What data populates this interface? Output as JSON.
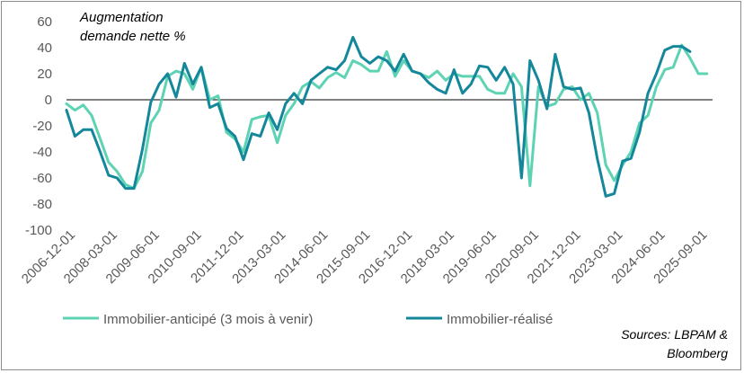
{
  "chart_data": {
    "type": "line",
    "title": "Augmentation demande nette %",
    "title_lines": [
      "Augmentation",
      "demande nette %"
    ],
    "source_lines": [
      "Sources: LBPAM &",
      "Bloomberg"
    ],
    "ylim": [
      -100,
      60
    ],
    "yticks": [
      60,
      40,
      20,
      0,
      -20,
      -40,
      -60,
      -80,
      -100
    ],
    "xlim": [
      "2006-10-01",
      "2025-12-01"
    ],
    "xtick_labels": [
      "2006-12-01",
      "2008-03-01",
      "2009-06-01",
      "2010-09-01",
      "2011-12-01",
      "2013-03-01",
      "2014-06-01",
      "2015-09-01",
      "2016-12-01",
      "2018-03-01",
      "2019-06-01",
      "2020-09-01",
      "2021-12-01",
      "2023-03-01",
      "2024-06-01",
      "2025-09-01"
    ],
    "grid": false,
    "legend": "bottom",
    "series": [
      {
        "name": "Immobilier-anticipé (3 mois à venir)",
        "color": "#5dd3b4",
        "points": [
          [
            "2006-10-01",
            -3
          ],
          [
            "2007-01-01",
            -8
          ],
          [
            "2007-04-01",
            -4
          ],
          [
            "2007-07-01",
            -12
          ],
          [
            "2007-10-01",
            -30
          ],
          [
            "2008-01-01",
            -48
          ],
          [
            "2008-04-01",
            -55
          ],
          [
            "2008-07-01",
            -65
          ],
          [
            "2008-10-01",
            -68
          ],
          [
            "2009-01-01",
            -55
          ],
          [
            "2009-04-01",
            -18
          ],
          [
            "2009-07-01",
            -8
          ],
          [
            "2009-10-01",
            18
          ],
          [
            "2010-01-01",
            22
          ],
          [
            "2010-04-01",
            20
          ],
          [
            "2010-07-01",
            8
          ],
          [
            "2010-10-01",
            25
          ],
          [
            "2011-01-01",
            0
          ],
          [
            "2011-04-01",
            3
          ],
          [
            "2011-07-01",
            -25
          ],
          [
            "2011-10-01",
            -30
          ],
          [
            "2012-01-01",
            -40
          ],
          [
            "2012-04-01",
            -15
          ],
          [
            "2012-07-01",
            -13
          ],
          [
            "2012-10-01",
            -12
          ],
          [
            "2013-01-01",
            -33
          ],
          [
            "2013-04-01",
            -12
          ],
          [
            "2013-07-01",
            -3
          ],
          [
            "2013-10-01",
            10
          ],
          [
            "2014-01-01",
            14
          ],
          [
            "2014-04-01",
            9
          ],
          [
            "2014-07-01",
            17
          ],
          [
            "2014-10-01",
            21
          ],
          [
            "2015-01-01",
            17
          ],
          [
            "2015-04-01",
            30
          ],
          [
            "2015-07-01",
            27
          ],
          [
            "2015-10-01",
            22
          ],
          [
            "2016-01-01",
            22
          ],
          [
            "2016-04-01",
            37
          ],
          [
            "2016-07-01",
            18
          ],
          [
            "2016-10-01",
            30
          ],
          [
            "2017-01-01",
            22
          ],
          [
            "2017-04-01",
            20
          ],
          [
            "2017-07-01",
            17
          ],
          [
            "2017-10-01",
            22
          ],
          [
            "2018-01-01",
            15
          ],
          [
            "2018-04-01",
            20
          ],
          [
            "2018-07-01",
            18
          ],
          [
            "2018-10-01",
            18
          ],
          [
            "2019-01-01",
            18
          ],
          [
            "2019-04-01",
            8
          ],
          [
            "2019-07-01",
            5
          ],
          [
            "2019-10-01",
            5
          ],
          [
            "2020-01-01",
            20
          ],
          [
            "2020-04-01",
            10
          ],
          [
            "2020-07-01",
            -66
          ],
          [
            "2020-10-01",
            10
          ],
          [
            "2021-01-01",
            -5
          ],
          [
            "2021-04-01",
            -3
          ],
          [
            "2021-07-01",
            8
          ],
          [
            "2021-10-01",
            10
          ],
          [
            "2022-01-01",
            0
          ],
          [
            "2022-04-01",
            5
          ],
          [
            "2022-07-01",
            -10
          ],
          [
            "2022-10-01",
            -50
          ],
          [
            "2023-01-01",
            -62
          ],
          [
            "2023-04-01",
            -50
          ],
          [
            "2023-07-01",
            -40
          ],
          [
            "2023-10-01",
            -18
          ],
          [
            "2024-01-01",
            -12
          ],
          [
            "2024-04-01",
            10
          ],
          [
            "2024-07-01",
            23
          ],
          [
            "2024-10-01",
            25
          ],
          [
            "2025-01-01",
            42
          ],
          [
            "2025-04-01",
            32
          ],
          [
            "2025-07-01",
            20
          ],
          [
            "2025-10-01",
            20
          ]
        ]
      },
      {
        "name": "Immobilier-réalisé",
        "color": "#15879a",
        "points": [
          [
            "2006-10-01",
            -8
          ],
          [
            "2007-01-01",
            -28
          ],
          [
            "2007-04-01",
            -23
          ],
          [
            "2007-07-01",
            -23
          ],
          [
            "2007-10-01",
            -40
          ],
          [
            "2008-01-01",
            -58
          ],
          [
            "2008-04-01",
            -60
          ],
          [
            "2008-07-01",
            -68
          ],
          [
            "2008-10-01",
            -68
          ],
          [
            "2009-01-01",
            -38
          ],
          [
            "2009-04-01",
            -2
          ],
          [
            "2009-07-01",
            12
          ],
          [
            "2009-10-01",
            20
          ],
          [
            "2010-01-01",
            2
          ],
          [
            "2010-04-01",
            28
          ],
          [
            "2010-07-01",
            12
          ],
          [
            "2010-10-01",
            25
          ],
          [
            "2011-01-01",
            -6
          ],
          [
            "2011-04-01",
            -3
          ],
          [
            "2011-07-01",
            -22
          ],
          [
            "2011-10-01",
            -28
          ],
          [
            "2012-01-01",
            -46
          ],
          [
            "2012-04-01",
            -26
          ],
          [
            "2012-07-01",
            -28
          ],
          [
            "2012-10-01",
            -10
          ],
          [
            "2013-01-01",
            -23
          ],
          [
            "2013-04-01",
            -3
          ],
          [
            "2013-07-01",
            5
          ],
          [
            "2013-10-01",
            -3
          ],
          [
            "2014-01-01",
            15
          ],
          [
            "2014-04-01",
            20
          ],
          [
            "2014-07-01",
            25
          ],
          [
            "2014-10-01",
            23
          ],
          [
            "2015-01-01",
            30
          ],
          [
            "2015-04-01",
            48
          ],
          [
            "2015-07-01",
            33
          ],
          [
            "2015-10-01",
            28
          ],
          [
            "2016-01-01",
            33
          ],
          [
            "2016-04-01",
            30
          ],
          [
            "2016-07-01",
            22
          ],
          [
            "2016-10-01",
            35
          ],
          [
            "2017-01-01",
            22
          ],
          [
            "2017-04-01",
            20
          ],
          [
            "2017-07-01",
            13
          ],
          [
            "2017-10-01",
            8
          ],
          [
            "2018-01-01",
            5
          ],
          [
            "2018-04-01",
            23
          ],
          [
            "2018-07-01",
            5
          ],
          [
            "2018-10-01",
            12
          ],
          [
            "2019-01-01",
            26
          ],
          [
            "2019-04-01",
            25
          ],
          [
            "2019-07-01",
            15
          ],
          [
            "2019-10-01",
            25
          ],
          [
            "2020-01-01",
            12
          ],
          [
            "2020-04-01",
            -60
          ],
          [
            "2020-07-01",
            30
          ],
          [
            "2020-10-01",
            15
          ],
          [
            "2021-01-01",
            -7
          ],
          [
            "2021-04-01",
            35
          ],
          [
            "2021-07-01",
            10
          ],
          [
            "2021-10-01",
            8
          ],
          [
            "2022-01-01",
            9
          ],
          [
            "2022-04-01",
            -10
          ],
          [
            "2022-07-01",
            -45
          ],
          [
            "2022-10-01",
            -74
          ],
          [
            "2023-01-01",
            -72
          ],
          [
            "2023-04-01",
            -47
          ],
          [
            "2023-07-01",
            -45
          ],
          [
            "2023-10-01",
            -25
          ],
          [
            "2024-01-01",
            5
          ],
          [
            "2024-04-01",
            20
          ],
          [
            "2024-07-01",
            38
          ],
          [
            "2024-10-01",
            41
          ],
          [
            "2025-01-01",
            41
          ],
          [
            "2025-04-01",
            37
          ]
        ]
      }
    ]
  }
}
